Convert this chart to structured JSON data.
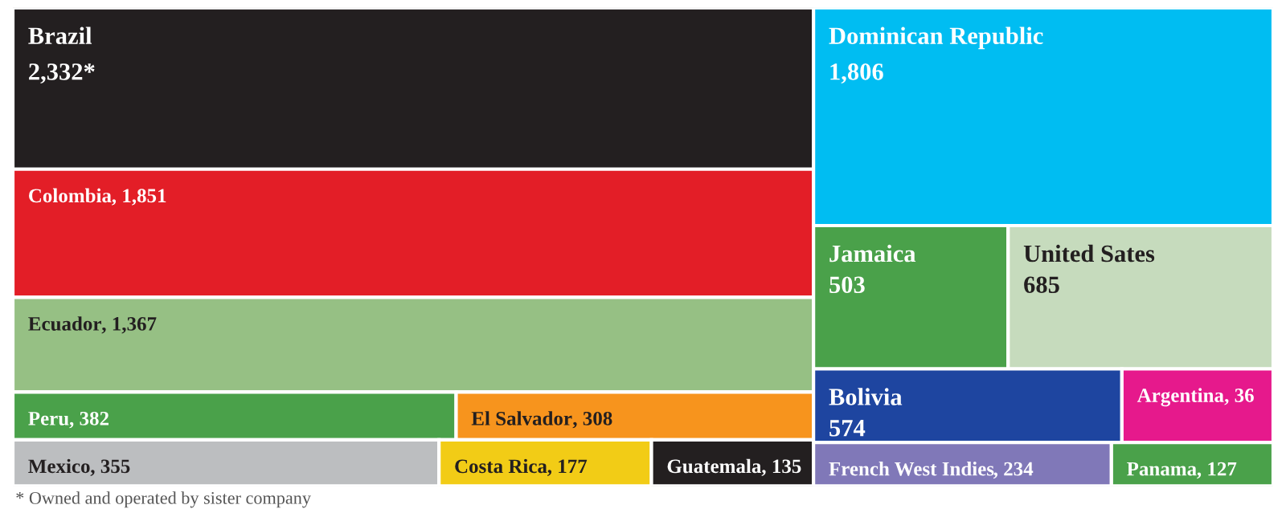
{
  "chart_data": {
    "type": "other",
    "categories": [
      "Brazil",
      "Dominican Republic",
      "Colombia",
      "Ecuador",
      "Jamaica",
      "United Sates",
      "Bolivia",
      "Argentina",
      "Peru",
      "El Salvador",
      "Mexico",
      "Costa Rica",
      "Guatemala",
      "French West Indies",
      "Panama"
    ],
    "values": [
      2332,
      1806,
      1851,
      1367,
      503,
      685,
      574,
      36,
      382,
      308,
      355,
      177,
      135,
      234,
      127
    ],
    "value_labels": [
      "2,332*",
      "1,806",
      ", 1,851",
      ", 1,367",
      "503",
      "685",
      "574",
      ", 36",
      ", 382",
      ", 308",
      ", 355",
      ", 177",
      ", 135",
      ", 234",
      ", 127"
    ],
    "colors": [
      "#231f20",
      "#00bdf2",
      "#e31e27",
      "#96c084",
      "#4aa14a",
      "#c6dbbd",
      "#1e45a0",
      "#e6198c",
      "#4aa14a",
      "#f7941d",
      "#bcbec0",
      "#f2cc16",
      "#231f20",
      "#8078b8",
      "#4aa14a"
    ],
    "annotations": [
      "* Owned and operated by sister company"
    ]
  }
}
